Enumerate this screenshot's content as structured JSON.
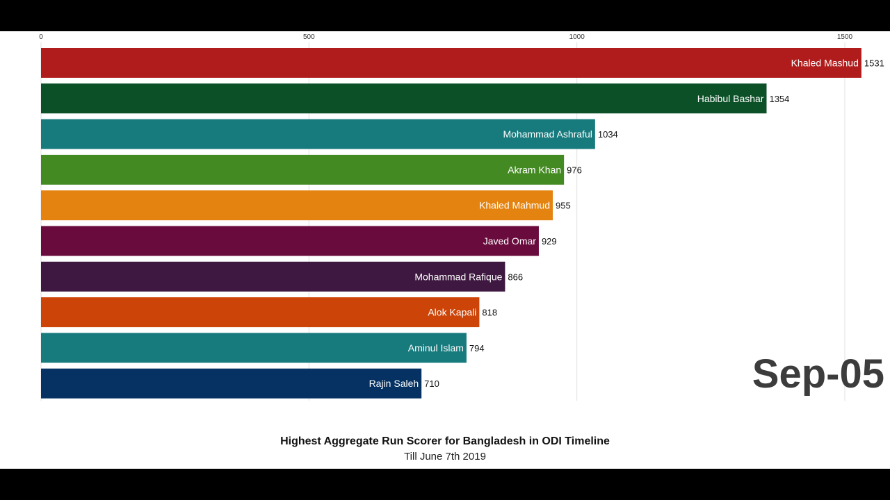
{
  "chart_data": {
    "type": "bar",
    "orientation": "horizontal",
    "title": "Highest Aggregate Run Scorer for Bangladesh in ODI Timeline",
    "subtitle": "Till June 7th 2019",
    "period_label": "Sep-05",
    "xlim": [
      0,
      1600
    ],
    "xticks": [
      0,
      500,
      1000,
      1500
    ],
    "grid": true,
    "categories": [
      "Khaled Mashud",
      "Habibul Bashar",
      "Mohammad Ashraful",
      "Akram Khan",
      "Khaled Mahmud",
      "Javed Omar",
      "Mohammad Rafique",
      "Alok Kapali",
      "Aminul Islam",
      "Rajin Saleh"
    ],
    "values": [
      1531,
      1354,
      1034,
      976,
      955,
      929,
      866,
      818,
      794,
      710
    ],
    "colors": [
      "#b01c1c",
      "#0b5027",
      "#177a7d",
      "#448a23",
      "#e4830f",
      "#6a0b3e",
      "#3e1840",
      "#cc4408",
      "#177a7d",
      "#063263"
    ]
  }
}
